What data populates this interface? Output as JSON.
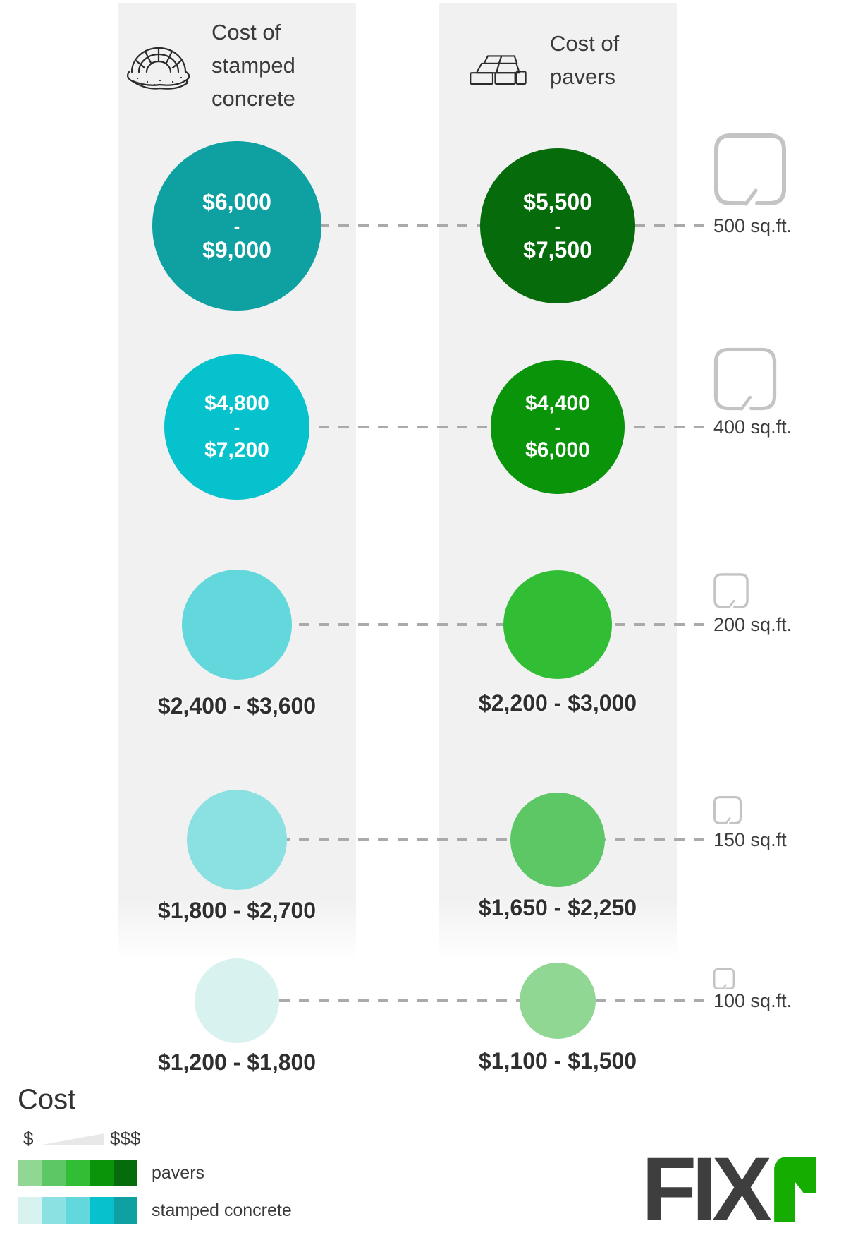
{
  "header": {
    "left": {
      "lines": "Cost of\nstamped\nconcrete",
      "icon": "stamped-concrete-icon"
    },
    "right": {
      "lines": "Cost of\npavers",
      "icon": "pavers-icon"
    }
  },
  "rows": [
    {
      "sqft_label": "500 sq.ft.",
      "stamped": {
        "min": "$6,000",
        "sep": "-",
        "max": "$9,000",
        "color": "#0fa0a1"
      },
      "pavers": {
        "min": "$5,500",
        "sep": "-",
        "max": "$7,500",
        "color": "#066b0a"
      }
    },
    {
      "sqft_label": "400 sq.ft.",
      "stamped": {
        "min": "$4,800",
        "sep": "-",
        "max": "$7,200",
        "color": "#06c2cd"
      },
      "pavers": {
        "min": "$4,400",
        "sep": "-",
        "max": "$6,000",
        "color": "#0a9409"
      }
    },
    {
      "sqft_label": "200 sq.ft.",
      "stamped": {
        "range_label": "$2,400 - $3,600",
        "color": "#62d8dc"
      },
      "pavers": {
        "range_label": "$2,200 - $3,000",
        "color": "#31be35"
      }
    },
    {
      "sqft_label": "150 sq.ft",
      "stamped": {
        "range_label": "$1,800 - $2,700",
        "color": "#8be0e2"
      },
      "pavers": {
        "range_label": "$1,650 - $2,250",
        "color": "#5cc764"
      }
    },
    {
      "sqft_label": "100 sq.ft.",
      "stamped": {
        "range_label": "$1,200 - $1,800",
        "color": "#d8f2ef"
      },
      "pavers": {
        "range_label": "$1,100 - $1,500",
        "color": "#90d794"
      }
    }
  ],
  "legend": {
    "title": "Cost",
    "low_symbol": "$",
    "high_symbol": "$$$",
    "series": [
      {
        "label": "pavers",
        "swatches": [
          "#90d794",
          "#5cc764",
          "#31be35",
          "#0a9409",
          "#066b0a"
        ]
      },
      {
        "label": "stamped concrete",
        "swatches": [
          "#d8f2ef",
          "#8be0e2",
          "#62d8dc",
          "#06c2cd",
          "#0fa0a1"
        ]
      }
    ]
  },
  "logo": {
    "text": "FIX",
    "r_color": "#15ad00",
    "text_color": "#3e3e3e"
  },
  "chart_data": {
    "type": "bubble",
    "title": "Cost of stamped concrete vs cost of pavers by area",
    "categories": [
      "500 sq.ft.",
      "400 sq.ft.",
      "200 sq.ft.",
      "150 sq.ft",
      "100 sq.ft."
    ],
    "sqft_values": [
      500,
      400,
      200,
      150,
      100
    ],
    "series": [
      {
        "name": "stamped concrete",
        "cost_ranges_usd": [
          [
            6000,
            9000
          ],
          [
            4800,
            7200
          ],
          [
            2400,
            3600
          ],
          [
            1800,
            2700
          ],
          [
            1200,
            1800
          ]
        ]
      },
      {
        "name": "pavers",
        "cost_ranges_usd": [
          [
            5500,
            7500
          ],
          [
            4400,
            6000
          ],
          [
            2200,
            3000
          ],
          [
            1650,
            2250
          ],
          [
            1100,
            1500
          ]
        ]
      }
    ],
    "legend_position": "bottom-left",
    "encoding": "bubble size and color darkness encode cost; larger and darker = more expensive"
  }
}
